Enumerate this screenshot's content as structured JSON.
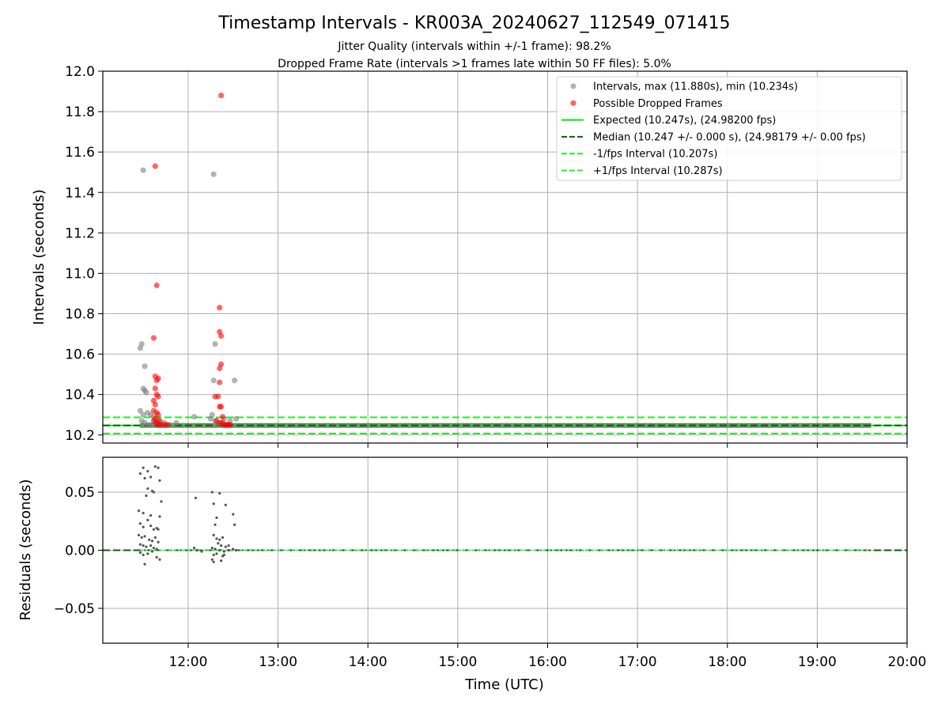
{
  "chart_data": [
    {
      "type": "scatter",
      "title": "Timestamp Intervals - KR003A_20240627_112549_071415",
      "subtitle_lines": [
        "Jitter Quality (intervals within +/-1 frame): 98.2%",
        "Dropped Frame Rate (intervals >1 frames late within 50 FF files): 5.0%"
      ],
      "xlabel": "",
      "ylabel": "Intervals (seconds)",
      "xlim": [
        "11:03",
        "20:00"
      ],
      "ylim": [
        10.16,
        12.0
      ],
      "x_ticks": [
        "12:00",
        "13:00",
        "14:00",
        "15:00",
        "16:00",
        "17:00",
        "18:00",
        "19:00",
        "20:00"
      ],
      "y_ticks": [
        "10.2",
        "10.4",
        "10.6",
        "10.8",
        "11.0",
        "11.2",
        "11.4",
        "11.6",
        "11.8",
        "12.0"
      ],
      "y_tick_values": [
        10.2,
        10.4,
        10.6,
        10.8,
        11.0,
        11.2,
        11.4,
        11.6,
        11.8,
        12.0
      ],
      "grid": true,
      "legend_position": "top-right",
      "legend": [
        "Intervals, max (11.880s), min (10.234s)",
        "Possible Dropped Frames",
        "Expected (10.247s), (24.98200 fps)",
        "Median (10.247 +/- 0.000 s), (24.98179 +/- 0.00 fps)",
        "-1/fps Interval (10.207s)",
        "+1/fps Interval (10.287s)"
      ],
      "colors": {
        "intervals": "#808080",
        "dropped": "#ff0000",
        "expected": "#00ee00",
        "median": "#006400",
        "fps_bounds": "#22ee22"
      },
      "reference_lines": {
        "expected": 10.247,
        "median": 10.247,
        "minus_1_fps": 10.207,
        "plus_1_fps": 10.287
      },
      "interval_line": {
        "start": "11:28",
        "end": "19:36",
        "value": 10.247
      },
      "series": [
        {
          "name": "Intervals, max (11.880s), min (10.234s)",
          "points": [
            [
              "11:30",
              11.51
            ],
            [
              "11:29",
              10.65
            ],
            [
              "11:28",
              10.63
            ],
            [
              "11:31",
              10.54
            ],
            [
              "11:30",
              10.43
            ],
            [
              "11:31",
              10.42
            ],
            [
              "11:32",
              10.41
            ],
            [
              "11:28",
              10.32
            ],
            [
              "11:30",
              10.3
            ],
            [
              "11:33",
              10.31
            ],
            [
              "11:35",
              10.3
            ],
            [
              "11:37",
              10.29
            ],
            [
              "11:29",
              10.27
            ],
            [
              "11:31",
              10.26
            ],
            [
              "11:33",
              10.25
            ],
            [
              "11:35",
              10.25
            ],
            [
              "11:38",
              10.26
            ],
            [
              "11:40",
              10.27
            ],
            [
              "11:42",
              10.25
            ],
            [
              "11:44",
              10.26
            ],
            [
              "11:46",
              10.25
            ],
            [
              "11:48",
              10.25
            ],
            [
              "11:52",
              10.26
            ],
            [
              "12:04",
              10.29
            ],
            [
              "12:17",
              11.49
            ],
            [
              "12:18",
              10.65
            ],
            [
              "12:17",
              10.47
            ],
            [
              "12:16",
              10.3
            ],
            [
              "12:15",
              10.28
            ],
            [
              "12:18",
              10.27
            ],
            [
              "12:20",
              10.25
            ],
            [
              "12:22",
              10.26
            ],
            [
              "12:24",
              10.28
            ],
            [
              "12:28",
              10.27
            ],
            [
              "12:31",
              10.47
            ],
            [
              "12:32",
              10.28
            ]
          ]
        },
        {
          "name": "Possible Dropped Frames",
          "points": [
            [
              "11:38",
              11.53
            ],
            [
              "11:39",
              10.94
            ],
            [
              "11:37",
              10.68
            ],
            [
              "11:38",
              10.49
            ],
            [
              "11:39",
              10.47
            ],
            [
              "11:40",
              10.48
            ],
            [
              "11:38",
              10.43
            ],
            [
              "11:39",
              10.4
            ],
            [
              "11:40",
              10.39
            ],
            [
              "11:37",
              10.37
            ],
            [
              "11:38",
              10.35
            ],
            [
              "11:37",
              10.32
            ],
            [
              "11:39",
              10.31
            ],
            [
              "11:40",
              10.3
            ],
            [
              "11:38",
              10.28
            ],
            [
              "11:37",
              10.27
            ],
            [
              "11:39",
              10.26
            ],
            [
              "11:41",
              10.27
            ],
            [
              "11:40",
              10.25
            ],
            [
              "11:42",
              10.25
            ],
            [
              "11:44",
              10.25
            ],
            [
              "11:46",
              10.25
            ],
            [
              "12:22",
              11.88
            ],
            [
              "12:21",
              10.83
            ],
            [
              "12:21",
              10.71
            ],
            [
              "12:22",
              10.69
            ],
            [
              "12:22",
              10.55
            ],
            [
              "12:21",
              10.53
            ],
            [
              "12:21",
              10.46
            ],
            [
              "12:18",
              10.39
            ],
            [
              "12:20",
              10.39
            ],
            [
              "12:21",
              10.34
            ],
            [
              "12:22",
              10.34
            ],
            [
              "12:23",
              10.29
            ],
            [
              "12:19",
              10.27
            ],
            [
              "12:21",
              10.26
            ],
            [
              "12:23",
              10.26
            ],
            [
              "12:24",
              10.25
            ],
            [
              "12:25",
              10.25
            ],
            [
              "12:26",
              10.25
            ],
            [
              "12:27",
              10.25
            ],
            [
              "12:28",
              10.25
            ]
          ]
        }
      ]
    },
    {
      "type": "scatter",
      "title": "",
      "xlabel": "Time (UTC)",
      "ylabel": "Residuals (seconds)",
      "xlim": [
        "11:03",
        "20:00"
      ],
      "ylim": [
        -0.08,
        0.08
      ],
      "x_ticks": [
        "12:00",
        "13:00",
        "14:00",
        "15:00",
        "16:00",
        "17:00",
        "18:00",
        "19:00",
        "20:00"
      ],
      "y_ticks": [
        "−0.05",
        "0.00",
        "0.05"
      ],
      "y_tick_values": [
        -0.05,
        0.0,
        0.05
      ],
      "grid": true,
      "reference_lines": {
        "zero": 0.0
      },
      "zero_line_span": {
        "start": "11:28",
        "end": "19:36"
      },
      "colors": {
        "residuals": "#555555",
        "zero_green": "#55ee55",
        "zero_dark": "#006400"
      },
      "series": [
        {
          "name": "",
          "points": [
            [
              "11:30",
              0.071
            ],
            [
              "11:33",
              0.068
            ],
            [
              "11:28",
              0.066
            ],
            [
              "11:31",
              0.062
            ],
            [
              "11:35",
              0.063
            ],
            [
              "11:38",
              0.072
            ],
            [
              "11:40",
              0.071
            ],
            [
              "11:41",
              0.06
            ],
            [
              "11:33",
              0.053
            ],
            [
              "11:36",
              0.051
            ],
            [
              "11:32",
              0.047
            ],
            [
              "11:37",
              0.05
            ],
            [
              "11:42",
              0.042
            ],
            [
              "11:27",
              0.034
            ],
            [
              "11:30",
              0.032
            ],
            [
              "11:33",
              0.026
            ],
            [
              "11:35",
              0.03
            ],
            [
              "11:41",
              0.029
            ],
            [
              "11:28",
              0.023
            ],
            [
              "11:30",
              0.02
            ],
            [
              "11:35",
              0.021
            ],
            [
              "11:37",
              0.018
            ],
            [
              "11:39",
              0.019
            ],
            [
              "11:40",
              0.018
            ],
            [
              "11:27",
              0.013
            ],
            [
              "11:29",
              0.011
            ],
            [
              "11:31",
              0.012
            ],
            [
              "11:34",
              0.009
            ],
            [
              "11:36",
              0.008
            ],
            [
              "11:38",
              0.011
            ],
            [
              "11:40",
              0.007
            ],
            [
              "11:28",
              0.005
            ],
            [
              "11:30",
              0.004
            ],
            [
              "11:32",
              0.003
            ],
            [
              "11:35",
              0.004
            ],
            [
              "11:37",
              0.002
            ],
            [
              "11:39",
              0.001
            ],
            [
              "11:28",
              -0.002
            ],
            [
              "11:30",
              -0.004
            ],
            [
              "11:33",
              -0.003
            ],
            [
              "11:36",
              -0.001
            ],
            [
              "11:39",
              -0.006
            ],
            [
              "11:41",
              -0.008
            ],
            [
              "11:31",
              -0.012
            ],
            [
              "12:05",
              0.045
            ],
            [
              "12:04",
              0.002
            ],
            [
              "12:06",
              0.0
            ],
            [
              "12:09",
              -0.001
            ],
            [
              "12:16",
              0.05
            ],
            [
              "12:17",
              0.04
            ],
            [
              "12:21",
              0.049
            ],
            [
              "12:25",
              0.039
            ],
            [
              "12:30",
              0.031
            ],
            [
              "12:19",
              0.028
            ],
            [
              "12:18",
              0.022
            ],
            [
              "12:31",
              0.022
            ],
            [
              "12:17",
              0.013
            ],
            [
              "12:19",
              0.01
            ],
            [
              "12:21",
              0.009
            ],
            [
              "12:23",
              0.011
            ],
            [
              "12:20",
              0.006
            ],
            [
              "12:22",
              0.004
            ],
            [
              "12:25",
              0.003
            ],
            [
              "12:27",
              0.004
            ],
            [
              "12:16",
              0.002
            ],
            [
              "12:18",
              0.001
            ],
            [
              "12:21",
              0.0
            ],
            [
              "12:24",
              -0.001
            ],
            [
              "12:27",
              0.0
            ],
            [
              "12:30",
              0.001
            ],
            [
              "12:32",
              0.0
            ],
            [
              "12:17",
              -0.004
            ],
            [
              "12:19",
              -0.003
            ],
            [
              "12:23",
              -0.005
            ],
            [
              "12:16",
              -0.008
            ],
            [
              "12:17",
              -0.01
            ],
            [
              "12:22",
              -0.009
            ],
            [
              "12:24",
              -0.004
            ]
          ]
        }
      ]
    }
  ]
}
